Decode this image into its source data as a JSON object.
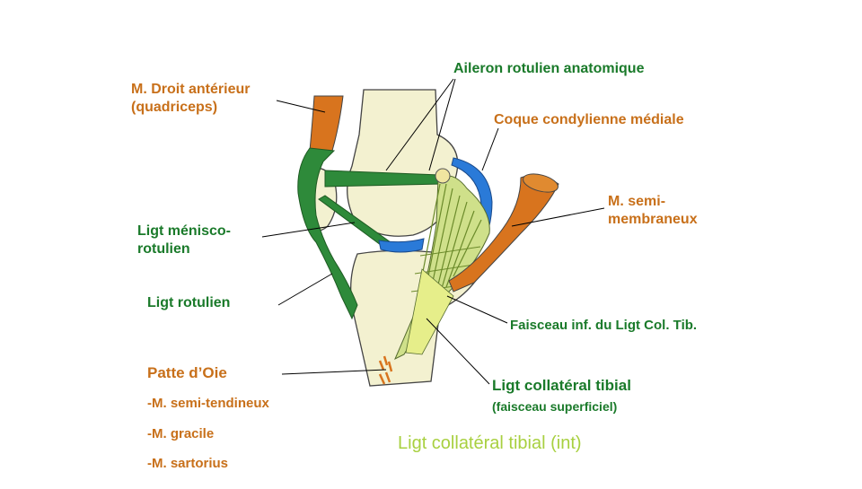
{
  "labels": {
    "droit_line1": "M. Droit antérieur",
    "droit_line2": "(quadriceps)",
    "aileron": "Aileron rotulien anatomique",
    "coque": "Coque condylienne médiale",
    "semimemb_line1": "M. semi-",
    "semimemb_line2": "membraneux",
    "menisco_line1": "Ligt ménisco-",
    "menisco_line2": "rotulien",
    "rotulien": "Ligt rotulien",
    "faisceau_inf": "Faisceau inf. du Ligt Col. Tib.",
    "collat_line1": "Ligt collatéral tibial",
    "collat_line2": "(faisceau superficiel)",
    "patte": "Patte d’Oie",
    "patte_1": "-M. semi-tendineux",
    "patte_2": "-M. gracile",
    "patte_3": "-M. sartorius"
  },
  "caption": "Ligt collatéral tibial (int)",
  "colors": {
    "orange_text": "#c8701a",
    "green_text": "#1a7a2a",
    "caption": "#a8d040",
    "bone": "#f3f1d0",
    "ligament": "#cfe08a",
    "tendon_green": "#2e8a3a",
    "muscle": "#d8741e",
    "capsule_blue": "#2a7ad8"
  }
}
